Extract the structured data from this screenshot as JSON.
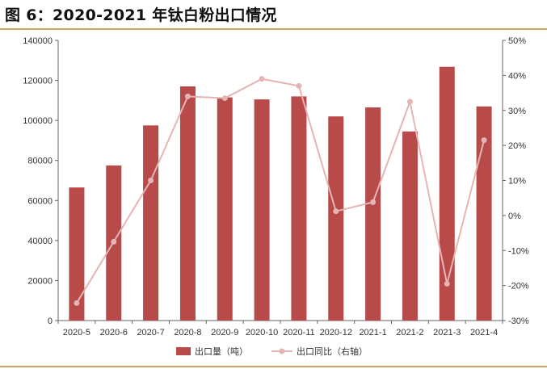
{
  "title": "图 6：2020-2021 年钛白粉出口情况",
  "colors": {
    "bar": "#b84a4a",
    "line": "#e5b5b5",
    "rule": "#c7a468",
    "axis": "#666666"
  },
  "chart_data": {
    "type": "bar",
    "categories": [
      "2020-5",
      "2020-6",
      "2020-7",
      "2020-8",
      "2020-9",
      "2020-10",
      "2020-11",
      "2020-12",
      "2021-1",
      "2021-2",
      "2021-3",
      "2021-4"
    ],
    "series": [
      {
        "name": "出口量（吨）",
        "type": "bar",
        "axis": "left",
        "values": [
          66500,
          77500,
          97500,
          117000,
          111500,
          110500,
          112000,
          102000,
          106500,
          94500,
          126800,
          107000
        ]
      },
      {
        "name": "出口同比（右轴）",
        "type": "line",
        "axis": "right",
        "values": [
          -25,
          -7.5,
          10,
          34,
          33.5,
          39,
          37,
          1.2,
          3.8,
          32.5,
          -19.5,
          21.5
        ]
      }
    ],
    "y_left": {
      "min": 0,
      "max": 140000,
      "ticks": [
        "0",
        "20000",
        "40000",
        "60000",
        "80000",
        "100000",
        "120000",
        "140000"
      ]
    },
    "y_right": {
      "min": -30,
      "max": 50,
      "ticks": [
        "-30%",
        "-20%",
        "-10%",
        "0%",
        "10%",
        "20%",
        "30%",
        "40%",
        "50%"
      ]
    },
    "legend": {
      "position": "bottom-center"
    }
  }
}
